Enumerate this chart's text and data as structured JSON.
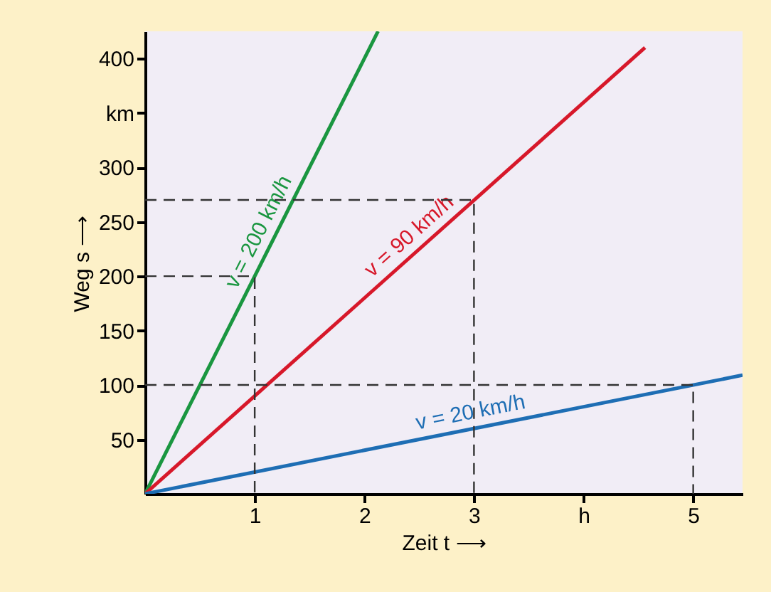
{
  "chart_data": {
    "type": "line",
    "xlabel": "Zeit t ⟶",
    "ylabel": "Weg s ⟶",
    "xlim": [
      0,
      5.45
    ],
    "ylim": [
      0,
      425
    ],
    "xticks": [
      1,
      2,
      3,
      {
        "value": 4,
        "label": "h"
      },
      5
    ],
    "yticks": [
      50,
      100,
      150,
      200,
      250,
      300,
      {
        "value": 350,
        "label": "km"
      },
      400
    ],
    "grid": false,
    "series": [
      {
        "name": "v = 200 km/h",
        "color": "#1a9640",
        "x": [
          0,
          2.125
        ],
        "values": [
          0,
          425
        ]
      },
      {
        "name": "v = 90 km/h",
        "color": "#d7182a",
        "x": [
          0,
          4.56
        ],
        "values": [
          0,
          410
        ]
      },
      {
        "name": "v = 20 km/h",
        "color": "#1e6eb4",
        "x": [
          0,
          5.45
        ],
        "values": [
          0,
          109
        ]
      },
      {
        "color": "#333333",
        "line_style": "dashed",
        "x": [
          0,
          1,
          1
        ],
        "values": [
          200,
          200,
          0
        ]
      },
      {
        "color": "#333333",
        "line_style": "dashed",
        "x": [
          0,
          3,
          3
        ],
        "values": [
          270,
          270,
          0
        ]
      },
      {
        "color": "#333333",
        "line_style": "dashed",
        "x": [
          0,
          5,
          5
        ],
        "values": [
          100,
          100,
          0
        ]
      }
    ]
  }
}
